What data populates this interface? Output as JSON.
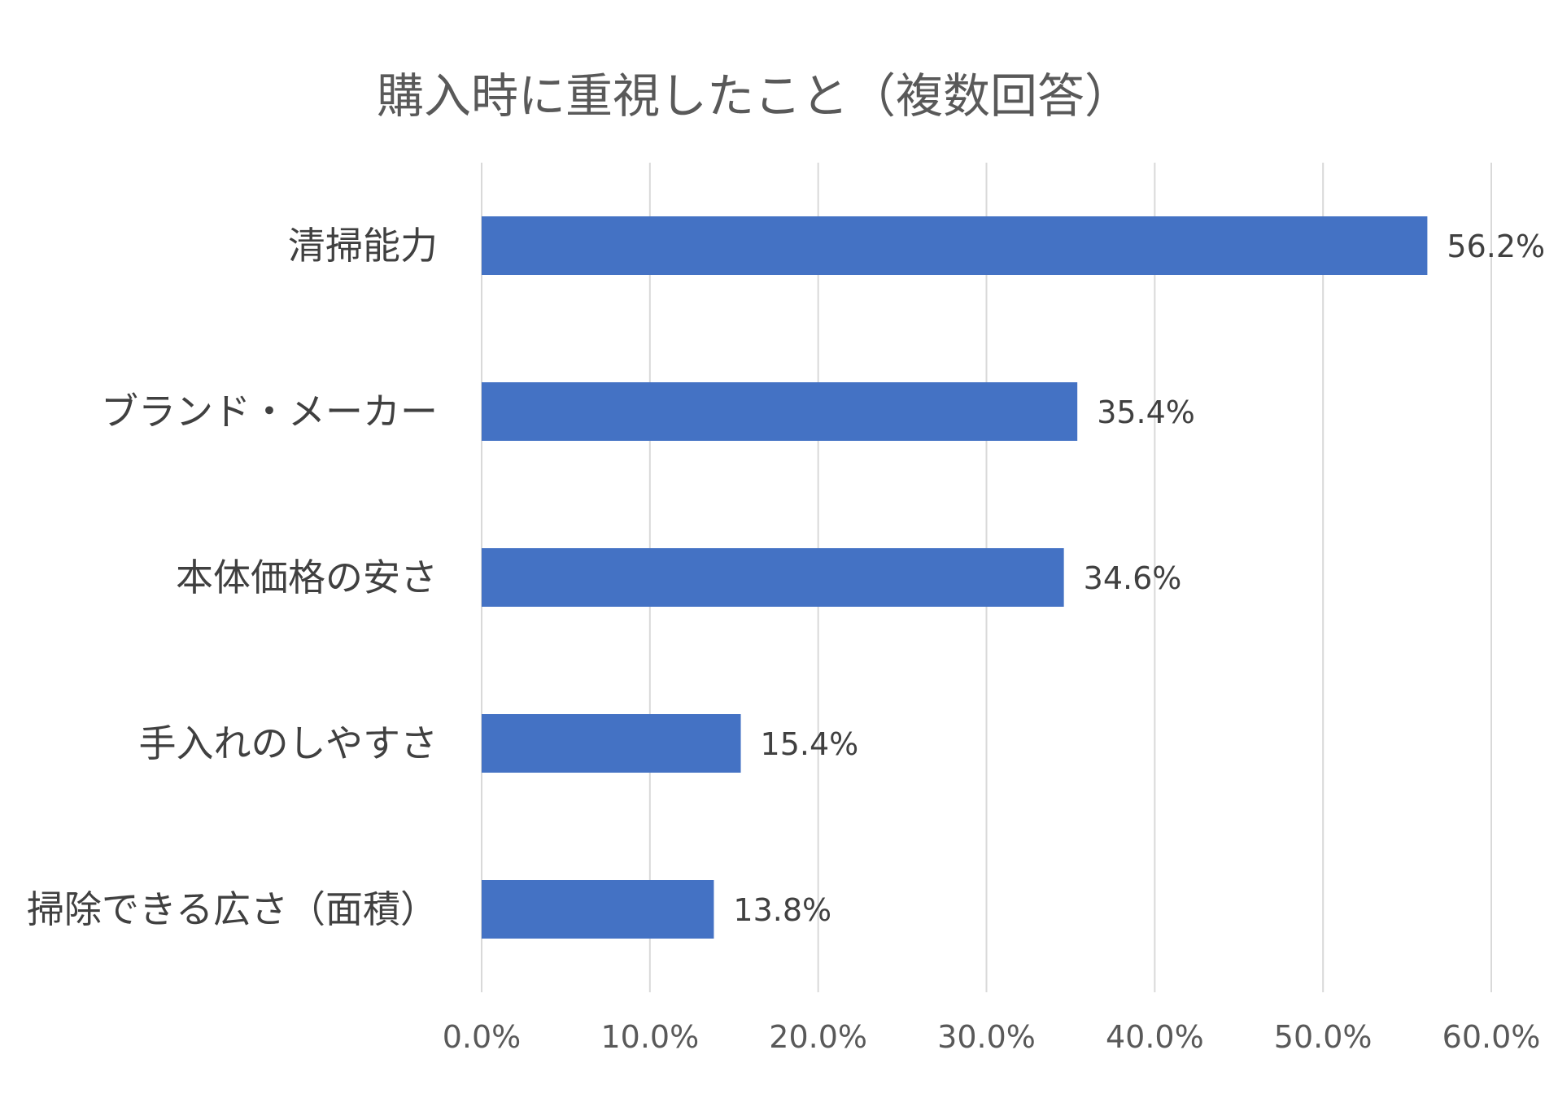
{
  "chart_data": {
    "type": "bar",
    "orientation": "horizontal",
    "title": "購入時に重視したこと（複数回答）",
    "categories": [
      "清掃能力",
      "ブランド・メーカー",
      "本体価格の安さ",
      "手入れのしやすさ",
      "掃除できる広さ（面積）"
    ],
    "series": [
      {
        "values": [
          56.2,
          35.4,
          34.6,
          15.4,
          13.8
        ],
        "data_labels": [
          "56.2%",
          "35.4%",
          "34.6%",
          "15.4%",
          "13.8%"
        ],
        "color": "#4472c4"
      }
    ],
    "xlim": [
      0,
      60
    ],
    "xticks": [
      0,
      10,
      20,
      30,
      40,
      50,
      60
    ],
    "xtick_labels": [
      "0.0%",
      "10.0%",
      "20.0%",
      "30.0%",
      "40.0%",
      "50.0%",
      "60.0%"
    ],
    "xlabel": "",
    "ylabel": "",
    "grid": "vertical",
    "legend": "none"
  },
  "colors": {
    "bar": "#4472c4",
    "grid": "#d9d9d9",
    "title_text": "#595959",
    "label_text": "#404040",
    "tick_text": "#595959"
  }
}
